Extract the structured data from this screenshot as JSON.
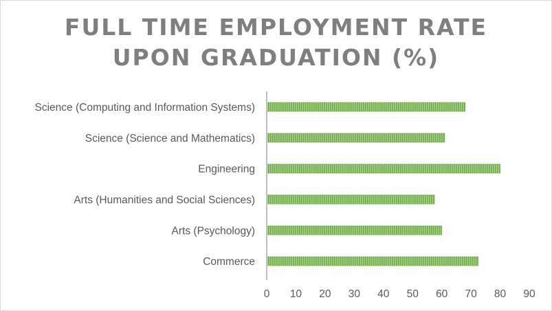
{
  "chart_data": {
    "type": "bar",
    "orientation": "horizontal",
    "title_lines": [
      "FULL TIME EMPLOYMENT RATE",
      "UPON GRADUATION (%)"
    ],
    "categories": [
      "Science (Computing and Information Systems)",
      "Science (Science and Mathematics)",
      "Engineering",
      "Arts (Humanities and Social Sciences)",
      "Arts (Psychology)",
      "Commerce"
    ],
    "values": [
      68,
      61,
      80,
      57.5,
      60,
      72.5
    ],
    "xlim": [
      0,
      90
    ],
    "x_ticks": [
      "0",
      "10",
      "20",
      "30",
      "40",
      "50",
      "60",
      "70",
      "80",
      "90"
    ],
    "xlabel": "",
    "ylabel": "",
    "grid": false,
    "legend": "none",
    "bar_color": "#70ad47",
    "bar_color_light": "#a9d18e",
    "axis_color": "#bfbfbf"
  }
}
